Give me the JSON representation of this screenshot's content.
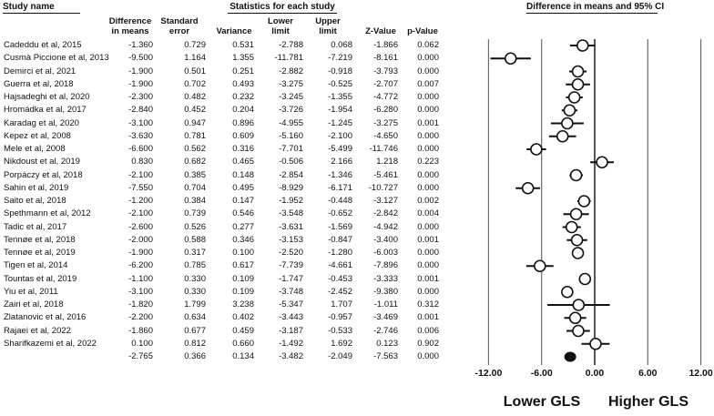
{
  "header": {
    "study_name_label": "Study name",
    "stats_group_label": "Statistics for each study",
    "ci_group_label": "Difference in means and 95% CI",
    "columns": [
      {
        "line1": "Difference",
        "line2": "in means"
      },
      {
        "line1": "Standard",
        "line2": "error"
      },
      {
        "line1": "",
        "line2": "Variance"
      },
      {
        "line1": "Lower",
        "line2": "limit"
      },
      {
        "line1": "Upper",
        "line2": "limit"
      },
      {
        "line1": "",
        "line2": "Z-Value"
      },
      {
        "line1": "",
        "line2": "p-Value"
      }
    ]
  },
  "colors": {
    "text": "#111111",
    "gridline": "#6b6b6b",
    "zero_line": "#2b2b2b",
    "marker_stroke": "#111111",
    "marker_fill": "#ffffff",
    "summary_fill": "#111111"
  },
  "chart_data": {
    "type": "forest",
    "title": "Difference in means and 95% CI",
    "x_ticks": [
      -12,
      -6,
      0,
      6,
      12
    ],
    "xlim": [
      -12,
      12
    ],
    "zero_line": 0,
    "axis": {
      "tick_labels": [
        "-12.00",
        "-6.00",
        "0.00",
        "6.00",
        "12.00"
      ],
      "left_label": "Lower GLS",
      "right_label": "Higher GLS"
    },
    "studies": [
      {
        "name": "Cadeddu et al, 2015",
        "diff": -1.36,
        "se": 0.729,
        "var": 0.531,
        "lower": -2.788,
        "upper": 0.068,
        "z": -1.866,
        "p": 0.062
      },
      {
        "name": "Cusmà Piccione et al, 2013",
        "diff": -9.5,
        "se": 1.164,
        "var": 1.355,
        "lower": -11.781,
        "upper": -7.219,
        "z": -8.161,
        "p": 0.0
      },
      {
        "name": "Demirci et al, 2021",
        "diff": -1.9,
        "se": 0.501,
        "var": 0.251,
        "lower": -2.882,
        "upper": -0.918,
        "z": -3.793,
        "p": 0.0
      },
      {
        "name": "Guerra et al, 2018",
        "diff": -1.9,
        "se": 0.702,
        "var": 0.493,
        "lower": -3.275,
        "upper": -0.525,
        "z": -2.707,
        "p": 0.007
      },
      {
        "name": "Hajsadeghi et al, 2020",
        "diff": -2.3,
        "se": 0.482,
        "var": 0.232,
        "lower": -3.245,
        "upper": -1.355,
        "z": -4.772,
        "p": 0.0
      },
      {
        "name": "Hromádka et al, 2017",
        "diff": -2.84,
        "se": 0.452,
        "var": 0.204,
        "lower": -3.726,
        "upper": -1.954,
        "z": -6.28,
        "p": 0.0
      },
      {
        "name": "Karadag et al, 2020",
        "diff": -3.1,
        "se": 0.947,
        "var": 0.896,
        "lower": -4.955,
        "upper": -1.245,
        "z": -3.275,
        "p": 0.001
      },
      {
        "name": "Kepez et al, 2008",
        "diff": -3.63,
        "se": 0.781,
        "var": 0.609,
        "lower": -5.16,
        "upper": -2.1,
        "z": -4.65,
        "p": 0.0
      },
      {
        "name": "Mele et al, 2008",
        "diff": -6.6,
        "se": 0.562,
        "var": 0.316,
        "lower": -7.701,
        "upper": -5.499,
        "z": -11.746,
        "p": 0.0
      },
      {
        "name": "Nikdoust et al, 2019",
        "diff": 0.83,
        "se": 0.682,
        "var": 0.465,
        "lower": -0.506,
        "upper": 2.166,
        "z": 1.218,
        "p": 0.223
      },
      {
        "name": "Porpáczy et al, 2018",
        "diff": -2.1,
        "se": 0.385,
        "var": 0.148,
        "lower": -2.854,
        "upper": -1.346,
        "z": -5.461,
        "p": 0.0
      },
      {
        "name": "Sahin et al, 2019",
        "diff": -7.55,
        "se": 0.704,
        "var": 0.495,
        "lower": -8.929,
        "upper": -6.171,
        "z": -10.727,
        "p": 0.0
      },
      {
        "name": "Saito et al, 2018",
        "diff": -1.2,
        "se": 0.384,
        "var": 0.147,
        "lower": -1.952,
        "upper": -0.448,
        "z": -3.127,
        "p": 0.002
      },
      {
        "name": "Spethmann et al, 2012",
        "diff": -2.1,
        "se": 0.739,
        "var": 0.546,
        "lower": -3.548,
        "upper": -0.652,
        "z": -2.842,
        "p": 0.004
      },
      {
        "name": "Tadic et al, 2017",
        "diff": -2.6,
        "se": 0.526,
        "var": 0.277,
        "lower": -3.631,
        "upper": -1.569,
        "z": -4.942,
        "p": 0.0
      },
      {
        "name": "Tennøe et al, 2018",
        "diff": -2.0,
        "se": 0.588,
        "var": 0.346,
        "lower": -3.153,
        "upper": -0.847,
        "z": -3.4,
        "p": 0.001
      },
      {
        "name": "Tennøe et al, 2019",
        "diff": -1.9,
        "se": 0.317,
        "var": 0.1,
        "lower": -2.52,
        "upper": -1.28,
        "z": -6.003,
        "p": 0.0
      },
      {
        "name": "Tigen et al, 2014",
        "diff": -6.2,
        "se": 0.785,
        "var": 0.617,
        "lower": -7.739,
        "upper": -4.661,
        "z": -7.896,
        "p": 0.0
      },
      {
        "name": "Tountas et al, 2019",
        "diff": -1.1,
        "se": 0.33,
        "var": 0.109,
        "lower": -1.747,
        "upper": -0.453,
        "z": -3.333,
        "p": 0.001
      },
      {
        "name": "Yiu et al, 2011",
        "diff": -3.1,
        "se": 0.33,
        "var": 0.109,
        "lower": -3.748,
        "upper": -2.452,
        "z": -9.38,
        "p": 0.0
      },
      {
        "name": "Zairi et al, 2018",
        "diff": -1.82,
        "se": 1.799,
        "var": 3.238,
        "lower": -5.347,
        "upper": 1.707,
        "z": -1.011,
        "p": 0.312
      },
      {
        "name": "Zlatanovic et al, 2016",
        "diff": -2.2,
        "se": 0.634,
        "var": 0.402,
        "lower": -3.443,
        "upper": -0.957,
        "z": -3.469,
        "p": 0.001
      },
      {
        "name": "Rajaei et al, 2022",
        "diff": -1.86,
        "se": 0.677,
        "var": 0.459,
        "lower": -3.187,
        "upper": -0.533,
        "z": -2.746,
        "p": 0.006
      },
      {
        "name": "Sharifkazemi et al, 2022",
        "diff": 0.1,
        "se": 0.812,
        "var": 0.66,
        "lower": -1.492,
        "upper": 1.692,
        "z": 0.123,
        "p": 0.902
      }
    ],
    "summary": {
      "name": "",
      "diff": -2.765,
      "se": 0.366,
      "var": 0.134,
      "lower": -3.482,
      "upper": -2.049,
      "z": -7.563,
      "p": 0.0
    }
  }
}
